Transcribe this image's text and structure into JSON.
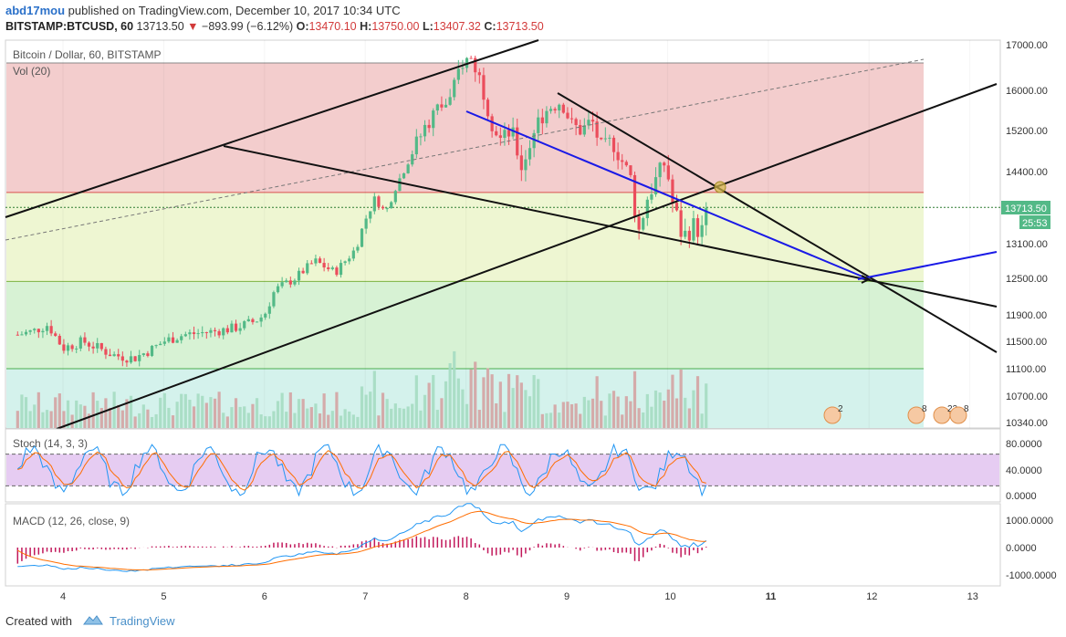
{
  "header": {
    "author": "abd17mou",
    "published_text": "published on TradingView.com, December 10, 2017 10:34 UTC",
    "symbol": "BITSTAMP:BTCUSD, 60",
    "last_price": "13713.50",
    "change": "−893.99 (−6.12%)",
    "open_label": "O:",
    "open": "13470.10",
    "high_label": "H:",
    "high": "13750.00",
    "low_label": "L:",
    "low": "13407.32",
    "close_label": "C:",
    "close": "13713.50",
    "change_color": "#d23a3a"
  },
  "footer": {
    "created_with": "Created with",
    "brand": "TradingView"
  },
  "chart_data": {
    "type": "candlestick",
    "title": "Bitcoin / Dollar, 60, BITSTAMP",
    "volume_label": "Vol (20)",
    "x_tick_labels": [
      "4",
      "5",
      "6",
      "7",
      "8",
      "9",
      "10",
      "11",
      "12",
      "13"
    ],
    "x_range_days": [
      3.55,
      13.3
    ],
    "price_axis_ticks": [
      17000,
      16000,
      15200,
      14400,
      13700,
      13100,
      12500,
      11900,
      11500,
      11100,
      10700,
      10340
    ],
    "price_axis_labels": [
      "17000.00",
      "16000.00",
      "15200.00",
      "14400.00",
      "13713.50",
      "13100.00",
      "12500.00",
      "11900.00",
      "11500.00",
      "11100.00",
      "10700.00",
      "10340.00"
    ],
    "price_range": [
      10340,
      17000
    ],
    "current_price_label": "13713.50",
    "countdown_label": "25:53",
    "price_path": [
      [
        3.55,
        11600
      ],
      [
        3.7,
        11650
      ],
      [
        3.85,
        11750
      ],
      [
        4.0,
        11400
      ],
      [
        4.2,
        11500
      ],
      [
        4.5,
        11300
      ],
      [
        4.7,
        11250
      ],
      [
        4.9,
        11400
      ],
      [
        5.0,
        11500
      ],
      [
        5.2,
        11600
      ],
      [
        5.5,
        11650
      ],
      [
        5.7,
        11700
      ],
      [
        5.9,
        11800
      ],
      [
        6.0,
        11900
      ],
      [
        6.1,
        12300
      ],
      [
        6.3,
        12500
      ],
      [
        6.5,
        12800
      ],
      [
        6.7,
        12600
      ],
      [
        6.9,
        13000
      ],
      [
        7.0,
        13500
      ],
      [
        7.1,
        13900
      ],
      [
        7.2,
        13600
      ],
      [
        7.3,
        14100
      ],
      [
        7.4,
        14500
      ],
      [
        7.5,
        14900
      ],
      [
        7.6,
        15300
      ],
      [
        7.7,
        15600
      ],
      [
        7.85,
        15800
      ],
      [
        7.95,
        16600
      ],
      [
        8.05,
        16700
      ],
      [
        8.15,
        16200
      ],
      [
        8.25,
        15400
      ],
      [
        8.35,
        15000
      ],
      [
        8.45,
        15200
      ],
      [
        8.55,
        14500
      ],
      [
        8.65,
        15000
      ],
      [
        8.75,
        15500
      ],
      [
        8.85,
        15700
      ],
      [
        8.95,
        15800
      ],
      [
        9.05,
        15300
      ],
      [
        9.15,
        15200
      ],
      [
        9.25,
        15400
      ],
      [
        9.35,
        14800
      ],
      [
        9.45,
        15000
      ],
      [
        9.55,
        14600
      ],
      [
        9.65,
        14200
      ],
      [
        9.7,
        13200
      ],
      [
        9.8,
        13900
      ],
      [
        9.9,
        14300
      ],
      [
        9.98,
        14600
      ],
      [
        10.05,
        13800
      ],
      [
        10.15,
        13200
      ],
      [
        10.25,
        13400
      ],
      [
        10.35,
        13300
      ],
      [
        10.4,
        13700
      ]
    ],
    "stochastic": {
      "label": "Stoch (14, 3, 3)",
      "axis": [
        "80.0000",
        "40.0000",
        "0.0000"
      ],
      "bands": [
        20,
        80
      ]
    },
    "macd": {
      "label": "MACD (12, 26, close, 9)",
      "axis": [
        "1000.0000",
        "0.0000",
        "-1000.0000"
      ]
    },
    "fib_levels": [
      16600,
      14000,
      12450,
      11100
    ],
    "fib_colors": [
      "#f3cdcd",
      "#eef6d2",
      "#d7f2d4",
      "#d4f2ec"
    ],
    "event_badges": [
      "2",
      "8",
      "22",
      "8"
    ]
  }
}
